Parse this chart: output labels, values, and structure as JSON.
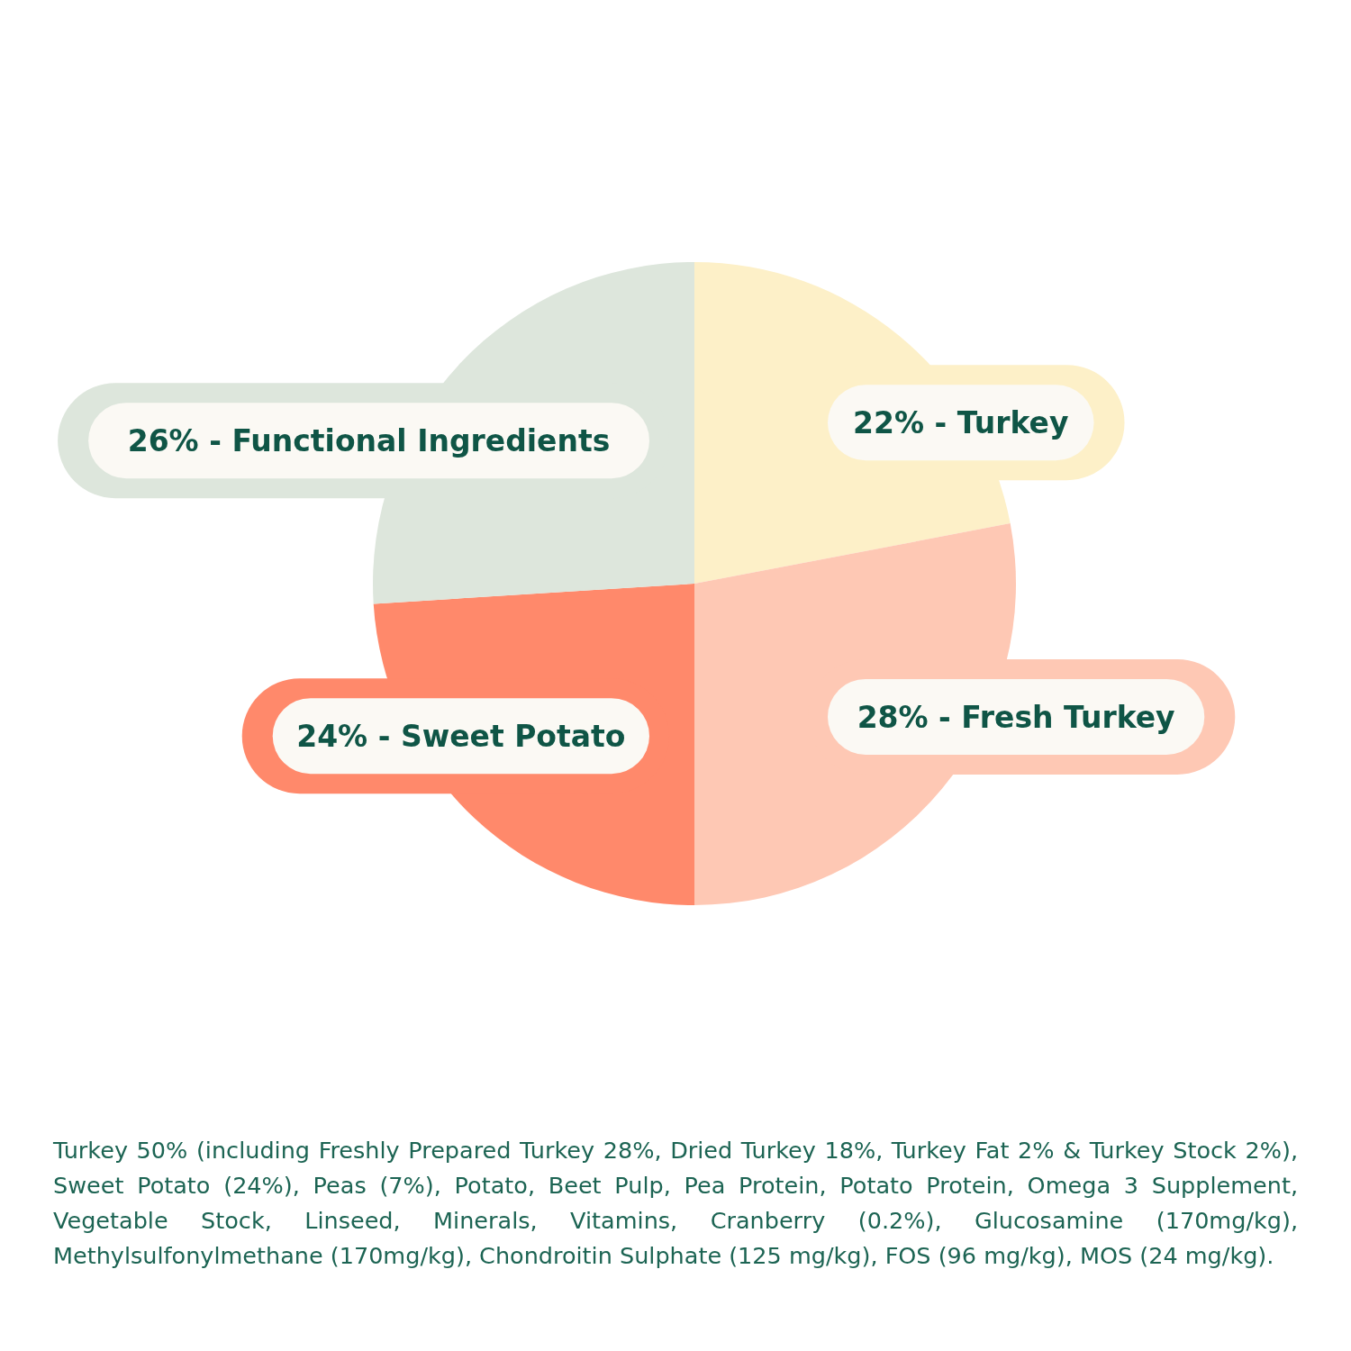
{
  "chart_data": {
    "type": "pie",
    "categories": [
      "Turkey",
      "Fresh Turkey",
      "Sweet Potato",
      "Functional Ingredients"
    ],
    "values": [
      22,
      28,
      24,
      26
    ],
    "colors": [
      "#fdf0c8",
      "#fec8b4",
      "#ff896b",
      "#dde6dc"
    ],
    "value_labels": [
      "22% -",
      "28% -",
      "24% -",
      "26% -"
    ],
    "legend": false,
    "annotations": [
      "Turkey 50% (including Freshly Prepared Turkey 28%, Dried Turkey 18%, Turkey Fat 2% & Turkey Stock 2%), Sweet Potato (24%), Peas (7%), Potato, Beet Pulp, Pea Protein, Potato Protein, Omega 3 Supplement, Vegetable Stock, Linseed, Minerals, Vitamins, Cranberry (0.2%), Glucosamine (170mg/kg), Methylsulfonylmethane (170mg/kg), Chondroitin Sulphate (125 mg/kg), FOS (96 mg/kg), MOS (24 mg/kg)."
    ]
  }
}
